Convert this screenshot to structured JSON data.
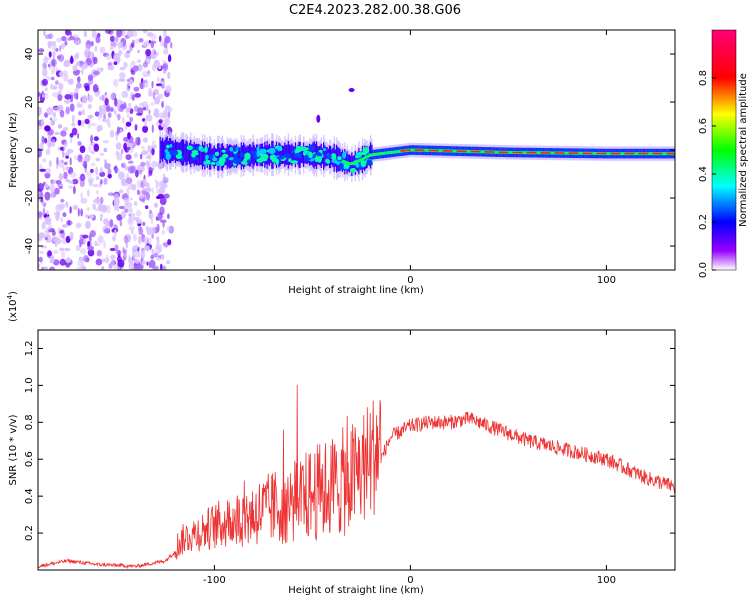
{
  "title": "C2E4.2023.282.00.38.G06",
  "chart_data": [
    {
      "type": "heatmap",
      "name": "spectrogram",
      "xlabel": "Height of straight line (km)",
      "ylabel": "Frequency (Hz)",
      "xlim": [
        -190,
        135
      ],
      "ylim": [
        -50,
        50
      ],
      "xticks": [
        -100,
        0,
        100
      ],
      "yticks": [
        -40,
        -20,
        0,
        20,
        40
      ],
      "ridge": [
        [
          -125,
          0
        ],
        [
          -100,
          -3
        ],
        [
          -75,
          -2
        ],
        [
          -50,
          -2
        ],
        [
          -40,
          -3
        ],
        [
          -30,
          -6
        ],
        [
          -20,
          -2
        ],
        [
          -10,
          -1
        ],
        [
          0,
          0
        ],
        [
          50,
          -1
        ],
        [
          100,
          -1.5
        ],
        [
          135,
          -1.5
        ]
      ],
      "colorbar": {
        "label": "Normalized spectral amplitude",
        "range": [
          0,
          1
        ],
        "ticks": [
          0.0,
          0.2,
          0.4,
          0.6,
          0.8
        ],
        "tick_labels": [
          "0.0",
          "0.2",
          "0.4",
          "0.6",
          "0.8"
        ]
      }
    },
    {
      "type": "line",
      "name": "snr",
      "xlabel": "Height of straight line (km)",
      "ylabel": "SNR (10 * v/v)",
      "scale_label": "(x10",
      "scale_exp": "4",
      "scale_close": ")",
      "xlim": [
        -190,
        135
      ],
      "ylim": [
        0,
        1.3
      ],
      "xticks": [
        -100,
        0,
        100
      ],
      "yticks": [
        0.2,
        0.4,
        0.6,
        0.8,
        1.0,
        1.2
      ],
      "ytick_labels": [
        "0.2",
        "0.4",
        "0.6",
        "0.8",
        "1.0",
        "1.2"
      ],
      "color": "#ee3333",
      "envelope": [
        [
          -190,
          0.02
        ],
        [
          -175,
          0.05
        ],
        [
          -160,
          0.03
        ],
        [
          -140,
          0.02
        ],
        [
          -125,
          0.05
        ],
        [
          -115,
          0.15
        ],
        [
          -100,
          0.2
        ],
        [
          -80,
          0.25
        ],
        [
          -60,
          0.3
        ],
        [
          -45,
          0.35
        ],
        [
          -30,
          0.4
        ],
        [
          -20,
          0.5
        ],
        [
          -15,
          0.6
        ],
        [
          -10,
          0.72
        ],
        [
          -5,
          0.75
        ],
        [
          0,
          0.78
        ],
        [
          10,
          0.8
        ],
        [
          20,
          0.8
        ],
        [
          30,
          0.82
        ],
        [
          40,
          0.78
        ],
        [
          60,
          0.7
        ],
        [
          80,
          0.65
        ],
        [
          100,
          0.6
        ],
        [
          120,
          0.5
        ],
        [
          135,
          0.45
        ]
      ]
    }
  ]
}
